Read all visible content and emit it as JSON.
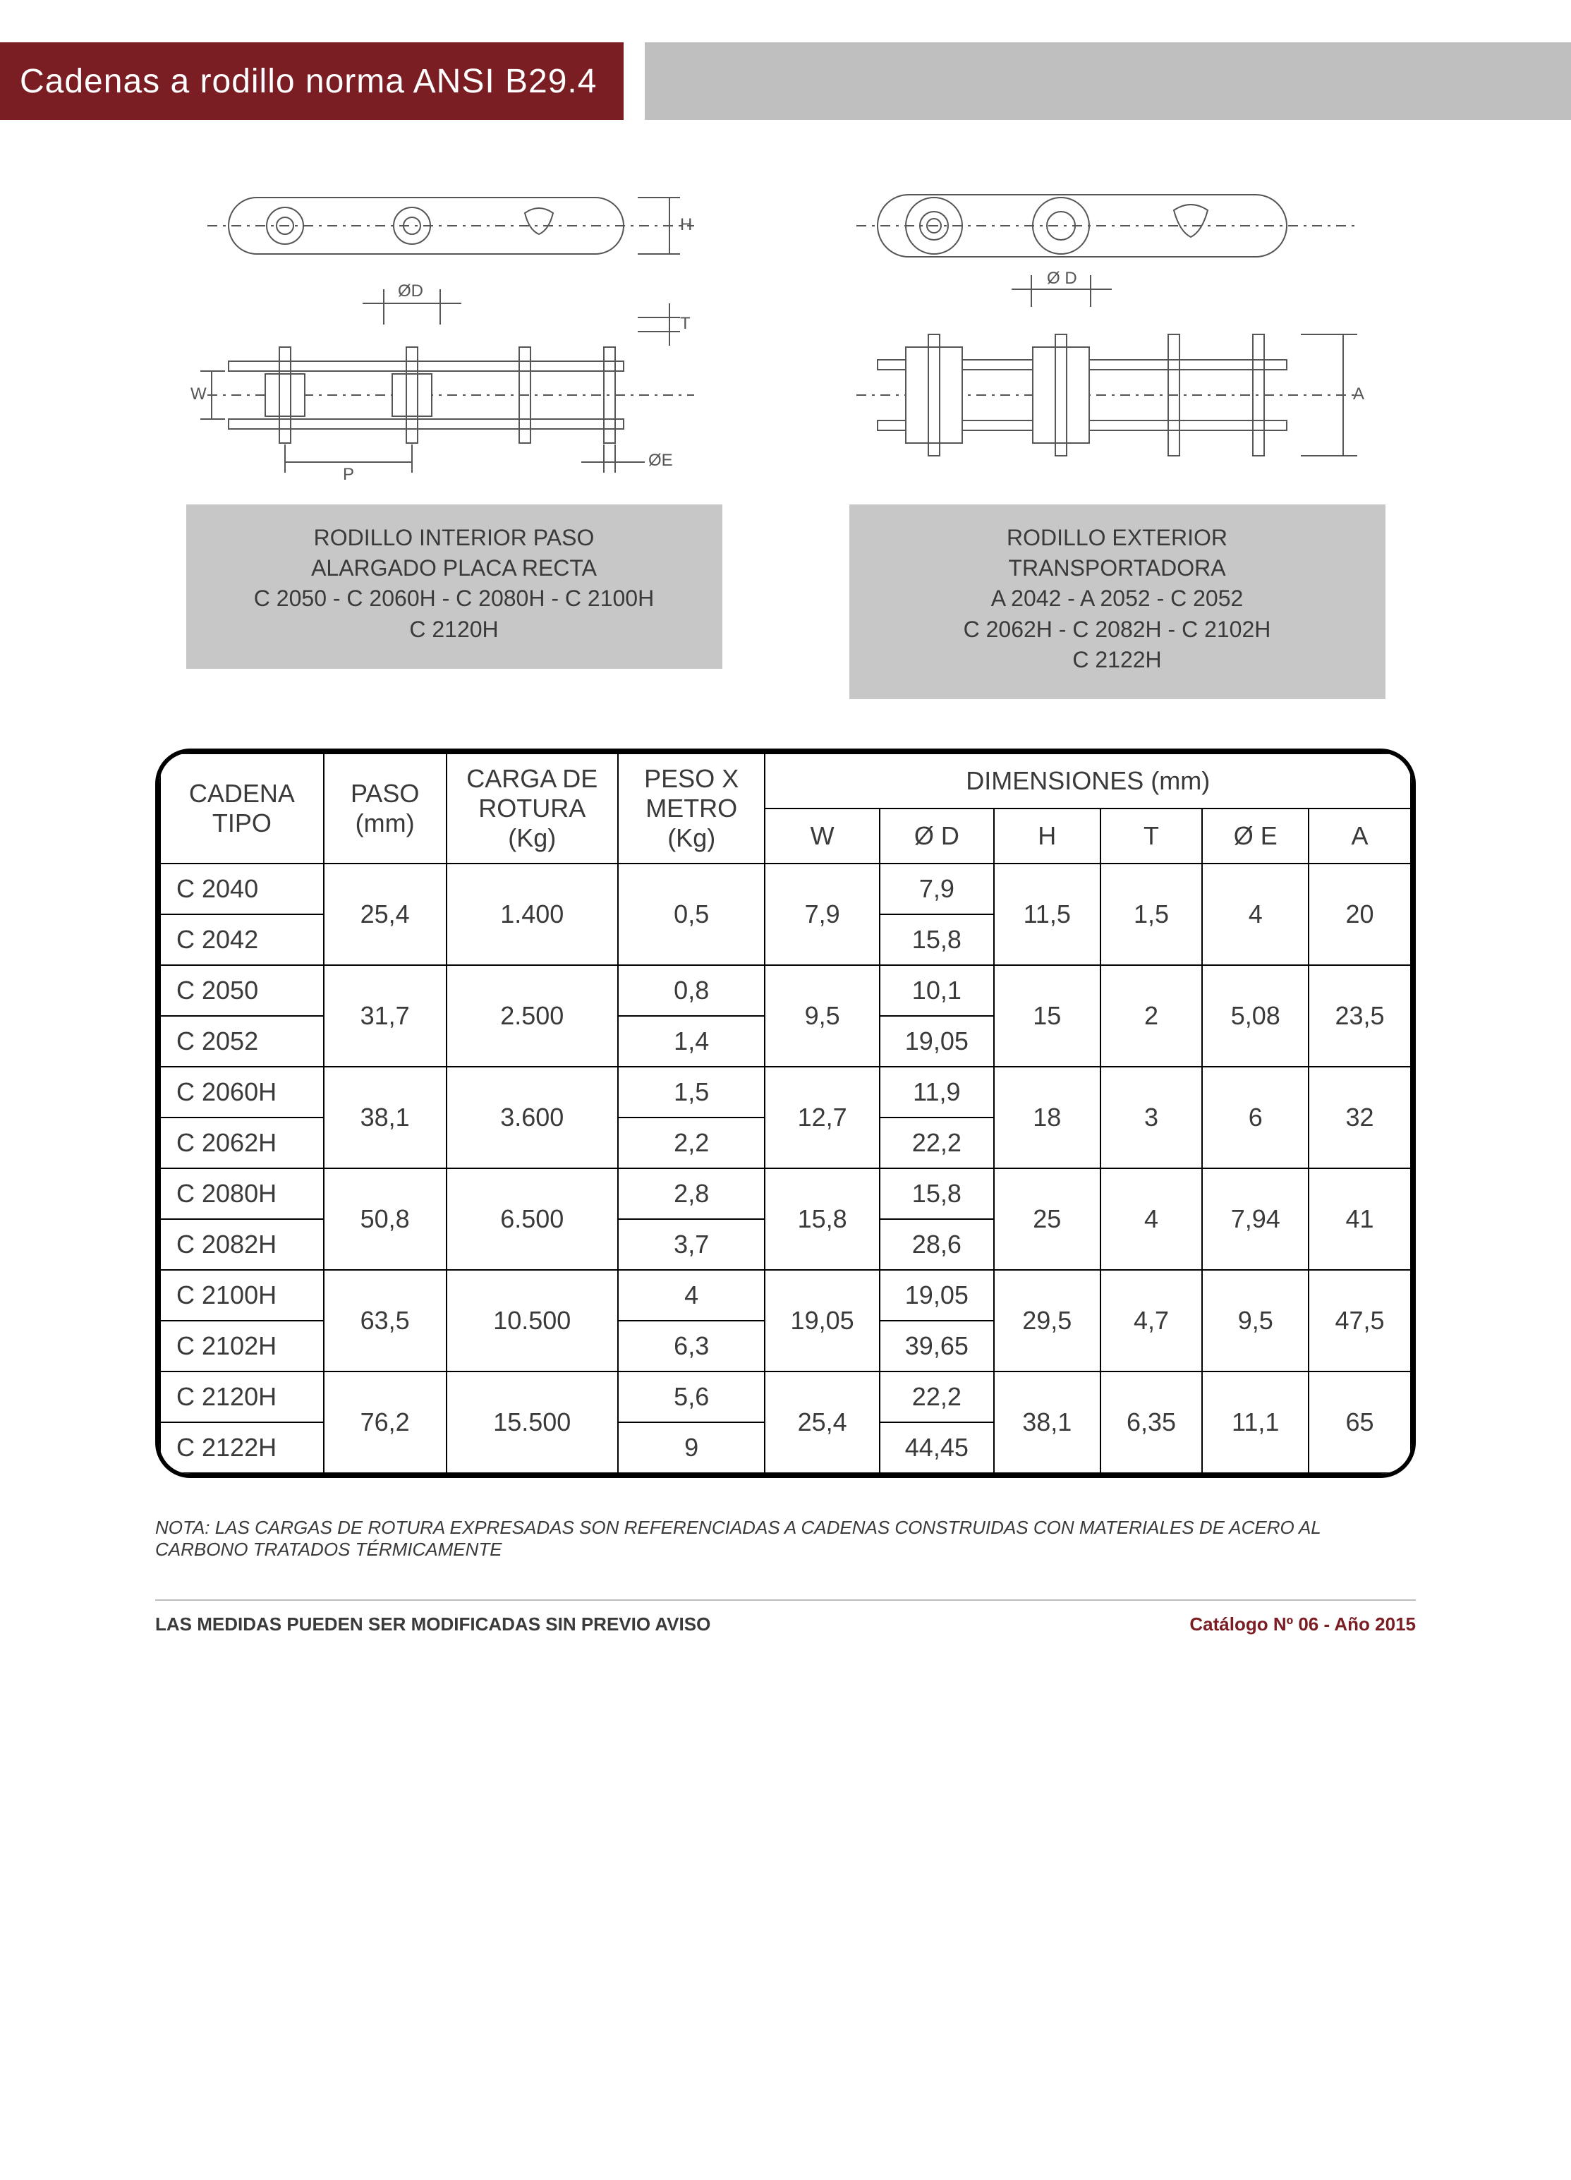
{
  "title": "Cadenas a rodillo norma ANSI B29.4",
  "colors": {
    "title_bg": "#7a1e24",
    "title_text": "#ffffff",
    "bar_grey": "#bfbfbf",
    "caption_bg": "#c7c7c7",
    "text": "#3a3a3a",
    "table_border": "#000000",
    "footer_rule": "#bdbdbd",
    "footer_right": "#7a1e24",
    "page_bg": "#ffffff",
    "diagram_stroke": "#555555",
    "diagram_fill": "#ffffff"
  },
  "typography": {
    "title_fontsize": 48,
    "caption_fontsize": 32,
    "table_fontsize": 36,
    "note_fontsize": 26,
    "footer_fontsize": 26
  },
  "diagrams": {
    "left": {
      "labels": {
        "H": "H",
        "OD": "ØD",
        "T": "T",
        "W": "W",
        "P": "P",
        "OE": "ØE"
      }
    },
    "right": {
      "labels": {
        "OD": "Ø D",
        "A": "A"
      }
    }
  },
  "captions": {
    "left_l1": "RODILLO INTERIOR PASO",
    "left_l2": "ALARGADO PLACA RECTA",
    "left_l3": "C 2050 - C 2060H - C 2080H - C 2100H",
    "left_l4": "C 2120H",
    "right_l1": "RODILLO EXTERIOR",
    "right_l2": "TRANSPORTADORA",
    "right_l3": "A 2042 - A 2052 - C 2052",
    "right_l4": "C 2062H - C 2082H - C 2102H",
    "right_l5": "C 2122H"
  },
  "table": {
    "headers": {
      "cadena_tipo_l1": "CADENA",
      "cadena_tipo_l2": "TIPO",
      "paso_l1": "PASO",
      "paso_l2": "(mm)",
      "carga_l1": "CARGA DE",
      "carga_l2": "ROTURA",
      "carga_l3": "(Kg)",
      "peso_l1": "PESO X",
      "peso_l2": "METRO",
      "peso_l3": "(Kg)",
      "dimensiones": "DIMENSIONES (mm)",
      "W": "W",
      "OD": "Ø D",
      "H": "H",
      "T": "T",
      "OE": "Ø E",
      "A": "A"
    },
    "groups": [
      {
        "tipo_a": "C 2040",
        "tipo_b": "C 2042",
        "paso": "25,4",
        "carga": "1.400",
        "peso_a": "0,5",
        "peso_b": "",
        "W": "7,9",
        "OD_a": "7,9",
        "OD_b": "15,8",
        "H": "11,5",
        "T": "1,5",
        "OE": "4",
        "A": "20",
        "peso_merged": true
      },
      {
        "tipo_a": "C 2050",
        "tipo_b": "C 2052",
        "paso": "31,7",
        "carga": "2.500",
        "peso_a": "0,8",
        "peso_b": "1,4",
        "W": "9,5",
        "OD_a": "10,1",
        "OD_b": "19,05",
        "H": "15",
        "T": "2",
        "OE": "5,08",
        "A": "23,5",
        "peso_merged": false
      },
      {
        "tipo_a": "C 2060H",
        "tipo_b": "C 2062H",
        "paso": "38,1",
        "carga": "3.600",
        "peso_a": "1,5",
        "peso_b": "2,2",
        "W": "12,7",
        "OD_a": "11,9",
        "OD_b": "22,2",
        "H": "18",
        "T": "3",
        "OE": "6",
        "A": "32",
        "peso_merged": false
      },
      {
        "tipo_a": "C 2080H",
        "tipo_b": "C 2082H",
        "paso": "50,8",
        "carga": "6.500",
        "peso_a": "2,8",
        "peso_b": "3,7",
        "W": "15,8",
        "OD_a": "15,8",
        "OD_b": "28,6",
        "H": "25",
        "T": "4",
        "OE": "7,94",
        "A": "41",
        "peso_merged": false
      },
      {
        "tipo_a": "C 2100H",
        "tipo_b": "C 2102H",
        "paso": "63,5",
        "carga": "10.500",
        "peso_a": "4",
        "peso_b": "6,3",
        "W": "19,05",
        "OD_a": "19,05",
        "OD_b": "39,65",
        "H": "29,5",
        "T": "4,7",
        "OE": "9,5",
        "A": "47,5",
        "peso_merged": false
      },
      {
        "tipo_a": "C 2120H",
        "tipo_b": "C 2122H",
        "paso": "76,2",
        "carga": "15.500",
        "peso_a": "5,6",
        "peso_b": "9",
        "W": "25,4",
        "OD_a": "22,2",
        "OD_b": "44,45",
        "H": "38,1",
        "T": "6,35",
        "OE": "11,1",
        "A": "65",
        "peso_merged": false
      }
    ]
  },
  "note": "NOTA: LAS CARGAS DE ROTURA EXPRESADAS SON REFERENCIADAS A CADENAS CONSTRUIDAS CON MATERIALES DE ACERO AL CARBONO TRATADOS TÉRMICAMENTE",
  "footer": {
    "left": "LAS MEDIDAS PUEDEN SER MODIFICADAS SIN PREVIO AVISO",
    "right": "Catálogo Nº 06 - Año 2015"
  }
}
